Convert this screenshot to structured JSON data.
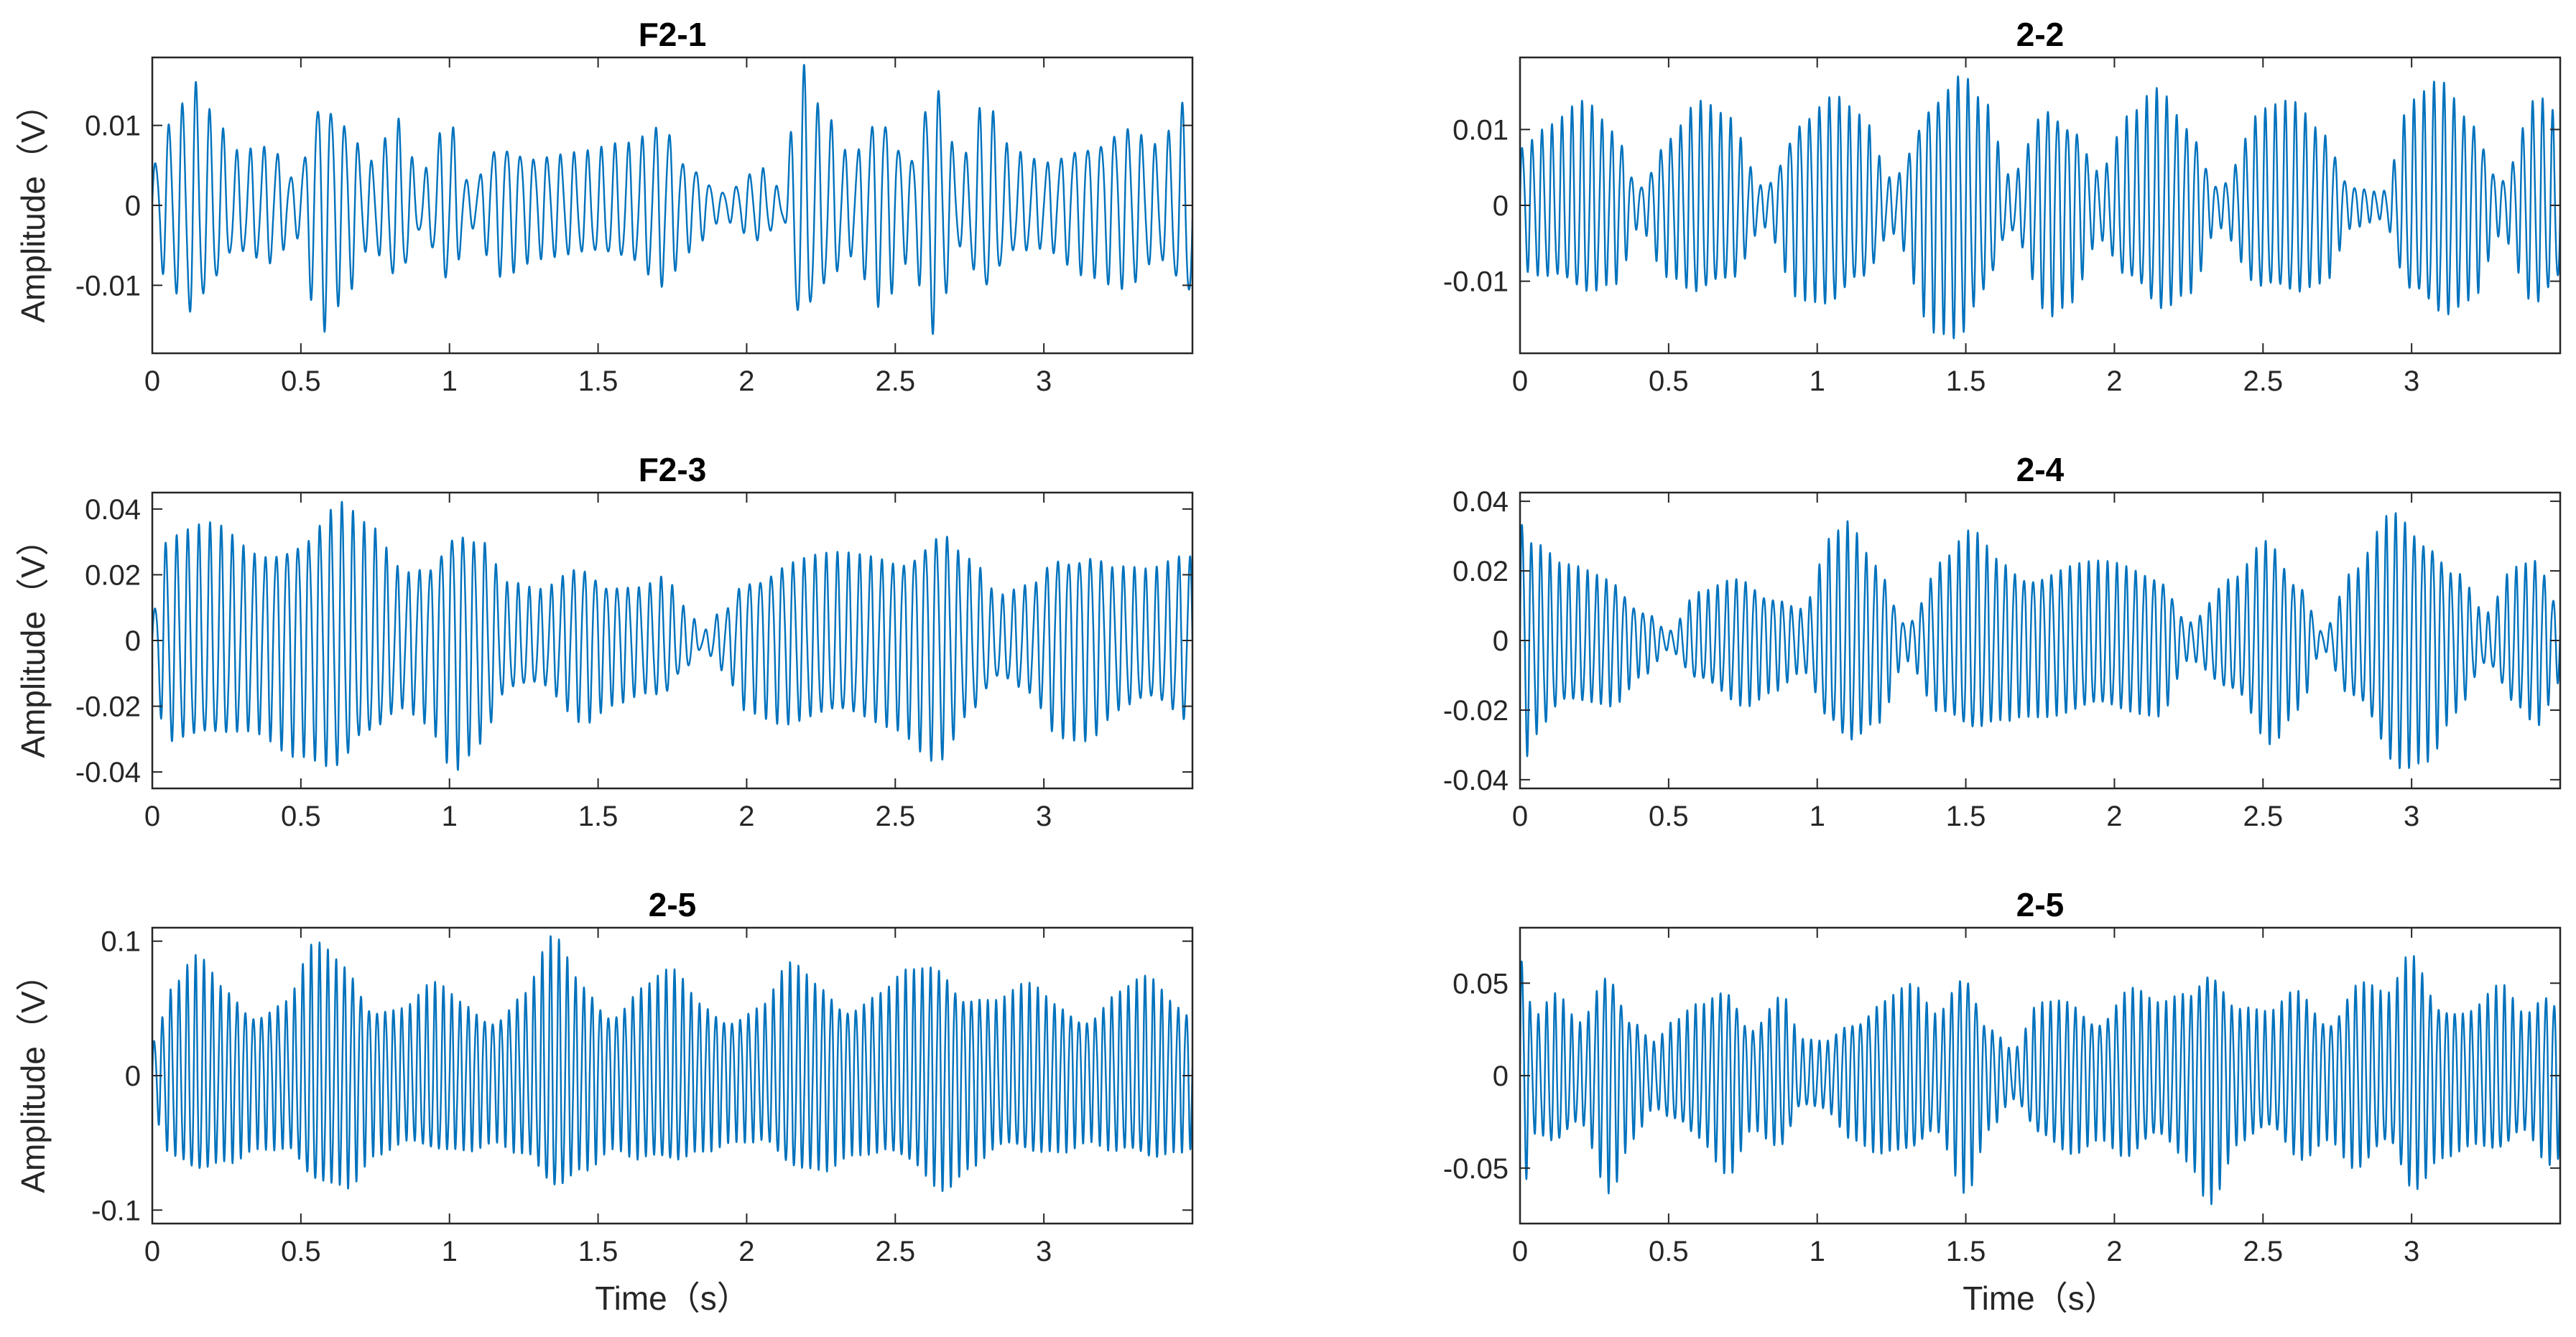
{
  "figure": {
    "line_color": "#0072BD",
    "axis_color": "#262626",
    "background": "#ffffff"
  },
  "chart_data": [
    {
      "type": "line",
      "title": "F2-1",
      "xlabel": "",
      "ylabel": "Amplitude（V）",
      "xlim": [
        0,
        3.5
      ],
      "ylim": [
        -0.0185,
        0.0185
      ],
      "xticks": [
        0,
        0.5,
        1,
        1.5,
        2,
        2.5,
        3
      ],
      "xtick_labels": [
        "0",
        "0.5",
        "1",
        "1.5",
        "2",
        "2.5",
        "3"
      ],
      "yticks": [
        -0.01,
        0,
        0.01
      ],
      "ytick_labels": [
        "-0.01",
        "0",
        "0.01"
      ],
      "carrier_hz": 22,
      "envelope": [
        [
          0,
          0.006
        ],
        [
          0.07,
          0.012
        ],
        [
          0.14,
          0.016
        ],
        [
          0.2,
          0.012
        ],
        [
          0.28,
          0.007
        ],
        [
          0.4,
          0.008
        ],
        [
          0.48,
          0.004
        ],
        [
          0.57,
          0.016
        ],
        [
          0.65,
          0.012
        ],
        [
          0.73,
          0.006
        ],
        [
          0.83,
          0.011
        ],
        [
          0.9,
          0.004
        ],
        [
          1.0,
          0.011
        ],
        [
          1.07,
          0.003
        ],
        [
          1.17,
          0.009
        ],
        [
          1.3,
          0.007
        ],
        [
          1.45,
          0.007
        ],
        [
          1.6,
          0.008
        ],
        [
          1.72,
          0.011
        ],
        [
          1.8,
          0.006
        ],
        [
          1.92,
          0.002
        ],
        [
          2.05,
          0.005
        ],
        [
          2.12,
          0.002
        ],
        [
          2.18,
          0.018
        ],
        [
          2.26,
          0.012
        ],
        [
          2.35,
          0.007
        ],
        [
          2.45,
          0.013
        ],
        [
          2.55,
          0.007
        ],
        [
          2.63,
          0.017
        ],
        [
          2.72,
          0.006
        ],
        [
          2.8,
          0.013
        ],
        [
          2.9,
          0.007
        ],
        [
          3.0,
          0.006
        ],
        [
          3.15,
          0.009
        ],
        [
          3.28,
          0.011
        ],
        [
          3.38,
          0.008
        ],
        [
          3.5,
          0.014
        ]
      ]
    },
    {
      "type": "line",
      "title": "2-2",
      "xlabel": "",
      "ylabel": "",
      "xlim": [
        0,
        3.5
      ],
      "ylim": [
        -0.0195,
        0.0195
      ],
      "xticks": [
        0,
        0.5,
        1,
        1.5,
        2,
        2.5,
        3
      ],
      "xtick_labels": [
        "0",
        "0.5",
        "1",
        "1.5",
        "2",
        "2.5",
        "3"
      ],
      "yticks": [
        -0.01,
        0,
        0.01
      ],
      "ytick_labels": [
        "-0.01",
        "0",
        "0.01"
      ],
      "carrier_hz": 30,
      "envelope": [
        [
          0,
          0.009
        ],
        [
          0.1,
          0.011
        ],
        [
          0.22,
          0.014
        ],
        [
          0.32,
          0.011
        ],
        [
          0.4,
          0.003
        ],
        [
          0.5,
          0.01
        ],
        [
          0.6,
          0.014
        ],
        [
          0.7,
          0.012
        ],
        [
          0.82,
          0.003
        ],
        [
          0.95,
          0.013
        ],
        [
          1.05,
          0.015
        ],
        [
          1.15,
          0.012
        ],
        [
          1.25,
          0.004
        ],
        [
          1.4,
          0.017
        ],
        [
          1.48,
          0.019
        ],
        [
          1.56,
          0.014
        ],
        [
          1.65,
          0.004
        ],
        [
          1.78,
          0.015
        ],
        [
          1.85,
          0.013
        ],
        [
          1.95,
          0.005
        ],
        [
          2.05,
          0.012
        ],
        [
          2.15,
          0.016
        ],
        [
          2.25,
          0.012
        ],
        [
          2.35,
          0.003
        ],
        [
          2.5,
          0.013
        ],
        [
          2.6,
          0.014
        ],
        [
          2.7,
          0.011
        ],
        [
          2.8,
          0.003
        ],
        [
          2.9,
          0.002
        ],
        [
          3.0,
          0.014
        ],
        [
          3.1,
          0.017
        ],
        [
          3.2,
          0.013
        ],
        [
          3.3,
          0.004
        ],
        [
          3.42,
          0.015
        ],
        [
          3.5,
          0.012
        ]
      ]
    },
    {
      "type": "line",
      "title": "F2-3",
      "xlabel": "",
      "ylabel": "Amplitude（V）",
      "xlim": [
        0,
        3.5
      ],
      "ylim": [
        -0.045,
        0.045
      ],
      "xticks": [
        0,
        0.5,
        1,
        1.5,
        2,
        2.5,
        3
      ],
      "xtick_labels": [
        "0",
        "0.5",
        "1",
        "1.5",
        "2",
        "2.5",
        "3"
      ],
      "yticks": [
        -0.04,
        -0.02,
        0,
        0.02,
        0.04
      ],
      "ytick_labels": [
        "-0.04",
        "-0.02",
        "0",
        "0.02",
        "0.04"
      ],
      "carrier_hz": 27,
      "envelope": [
        [
          0,
          0.01
        ],
        [
          0.05,
          0.034
        ],
        [
          0.2,
          0.036
        ],
        [
          0.35,
          0.03
        ],
        [
          0.5,
          0.036
        ],
        [
          0.63,
          0.044
        ],
        [
          0.72,
          0.036
        ],
        [
          0.85,
          0.023
        ],
        [
          0.92,
          0.026
        ],
        [
          1.02,
          0.04
        ],
        [
          1.1,
          0.034
        ],
        [
          1.2,
          0.018
        ],
        [
          1.3,
          0.016
        ],
        [
          1.45,
          0.026
        ],
        [
          1.55,
          0.02
        ],
        [
          1.65,
          0.018
        ],
        [
          1.72,
          0.02
        ],
        [
          1.8,
          0.01
        ],
        [
          1.85,
          0.003
        ],
        [
          1.92,
          0.01
        ],
        [
          2.0,
          0.022
        ],
        [
          2.15,
          0.027
        ],
        [
          2.35,
          0.027
        ],
        [
          2.5,
          0.028
        ],
        [
          2.65,
          0.038
        ],
        [
          2.75,
          0.026
        ],
        [
          2.85,
          0.014
        ],
        [
          2.95,
          0.018
        ],
        [
          3.05,
          0.03
        ],
        [
          3.15,
          0.031
        ],
        [
          3.25,
          0.024
        ],
        [
          3.35,
          0.022
        ],
        [
          3.5,
          0.028
        ]
      ]
    },
    {
      "type": "line",
      "title": "2-4",
      "xlabel": "",
      "ylabel": "",
      "xlim": [
        0,
        3.5
      ],
      "ylim": [
        -0.0425,
        0.0425
      ],
      "xticks": [
        0,
        0.5,
        1,
        1.5,
        2,
        2.5,
        3
      ],
      "xtick_labels": [
        "0",
        "0.5",
        "1",
        "1.5",
        "2",
        "2.5",
        "3"
      ],
      "yticks": [
        -0.04,
        -0.02,
        0,
        0.02,
        0.04
      ],
      "ytick_labels": [
        "-0.04",
        "-0.02",
        "0",
        "0.02",
        "0.04"
      ],
      "carrier_hz": 32,
      "envelope": [
        [
          0,
          0.04
        ],
        [
          0.05,
          0.03
        ],
        [
          0.15,
          0.022
        ],
        [
          0.3,
          0.02
        ],
        [
          0.42,
          0.01
        ],
        [
          0.5,
          0.003
        ],
        [
          0.6,
          0.014
        ],
        [
          0.75,
          0.02
        ],
        [
          0.85,
          0.015
        ],
        [
          0.95,
          0.01
        ],
        [
          1.05,
          0.03
        ],
        [
          1.1,
          0.035
        ],
        [
          1.2,
          0.025
        ],
        [
          1.3,
          0.006
        ],
        [
          1.42,
          0.024
        ],
        [
          1.52,
          0.032
        ],
        [
          1.62,
          0.025
        ],
        [
          1.7,
          0.022
        ],
        [
          1.85,
          0.023
        ],
        [
          2.0,
          0.023
        ],
        [
          2.15,
          0.022
        ],
        [
          2.25,
          0.006
        ],
        [
          2.4,
          0.018
        ],
        [
          2.52,
          0.032
        ],
        [
          2.62,
          0.02
        ],
        [
          2.7,
          0.003
        ],
        [
          2.8,
          0.02
        ],
        [
          2.95,
          0.04
        ],
        [
          3.05,
          0.035
        ],
        [
          3.15,
          0.022
        ],
        [
          3.25,
          0.008
        ],
        [
          3.35,
          0.022
        ],
        [
          3.42,
          0.026
        ],
        [
          3.5,
          0.012
        ]
      ]
    },
    {
      "type": "line",
      "title": "2-5",
      "xlabel": "Time（s）",
      "ylabel": "Amplitude（V）",
      "xlim": [
        0,
        3.5
      ],
      "ylim": [
        -0.11,
        0.11
      ],
      "xticks": [
        0,
        0.5,
        1,
        1.5,
        2,
        2.5,
        3
      ],
      "xtick_labels": [
        "0",
        "0.5",
        "1",
        "1.5",
        "2",
        "2.5",
        "3"
      ],
      "yticks": [
        -0.1,
        0,
        0.1
      ],
      "ytick_labels": [
        "-0.1",
        "0",
        "0.1"
      ],
      "carrier_hz": 36,
      "envelope": [
        [
          0,
          0.03
        ],
        [
          0.07,
          0.07
        ],
        [
          0.15,
          0.09
        ],
        [
          0.25,
          0.07
        ],
        [
          0.35,
          0.055
        ],
        [
          0.45,
          0.06
        ],
        [
          0.55,
          0.1
        ],
        [
          0.65,
          0.09
        ],
        [
          0.75,
          0.06
        ],
        [
          0.85,
          0.055
        ],
        [
          0.95,
          0.07
        ],
        [
          1.05,
          0.06
        ],
        [
          1.15,
          0.05
        ],
        [
          1.25,
          0.065
        ],
        [
          1.35,
          0.105
        ],
        [
          1.45,
          0.075
        ],
        [
          1.55,
          0.055
        ],
        [
          1.65,
          0.07
        ],
        [
          1.75,
          0.08
        ],
        [
          1.85,
          0.06
        ],
        [
          1.95,
          0.05
        ],
        [
          2.05,
          0.055
        ],
        [
          2.15,
          0.085
        ],
        [
          2.25,
          0.075
        ],
        [
          2.35,
          0.06
        ],
        [
          2.45,
          0.065
        ],
        [
          2.55,
          0.08
        ],
        [
          2.65,
          0.09
        ],
        [
          2.75,
          0.07
        ],
        [
          2.85,
          0.06
        ],
        [
          2.95,
          0.07
        ],
        [
          3.05,
          0.06
        ],
        [
          3.15,
          0.05
        ],
        [
          3.25,
          0.065
        ],
        [
          3.35,
          0.075
        ],
        [
          3.45,
          0.06
        ],
        [
          3.5,
          0.055
        ]
      ]
    },
    {
      "type": "line",
      "title": "2-5",
      "xlabel": "Time（s）",
      "ylabel": "",
      "xlim": [
        0,
        3.5
      ],
      "ylim": [
        -0.08,
        0.08
      ],
      "xticks": [
        0,
        0.5,
        1,
        1.5,
        2,
        2.5,
        3
      ],
      "xtick_labels": [
        "0",
        "0.5",
        "1",
        "1.5",
        "2",
        "2.5",
        "3"
      ],
      "yticks": [
        -0.05,
        0,
        0.05
      ],
      "ytick_labels": [
        "-0.05",
        "0",
        "0.05"
      ],
      "carrier_hz": 36,
      "envelope": [
        [
          0,
          0.075
        ],
        [
          0.05,
          0.035
        ],
        [
          0.12,
          0.045
        ],
        [
          0.2,
          0.03
        ],
        [
          0.3,
          0.065
        ],
        [
          0.38,
          0.035
        ],
        [
          0.45,
          0.02
        ],
        [
          0.52,
          0.03
        ],
        [
          0.6,
          0.04
        ],
        [
          0.7,
          0.055
        ],
        [
          0.78,
          0.03
        ],
        [
          0.88,
          0.045
        ],
        [
          0.95,
          0.02
        ],
        [
          1.02,
          0.02
        ],
        [
          1.12,
          0.035
        ],
        [
          1.22,
          0.045
        ],
        [
          1.32,
          0.05
        ],
        [
          1.4,
          0.035
        ],
        [
          1.5,
          0.065
        ],
        [
          1.58,
          0.03
        ],
        [
          1.66,
          0.015
        ],
        [
          1.75,
          0.04
        ],
        [
          1.85,
          0.045
        ],
        [
          1.95,
          0.035
        ],
        [
          2.05,
          0.05
        ],
        [
          2.15,
          0.04
        ],
        [
          2.25,
          0.05
        ],
        [
          2.32,
          0.07
        ],
        [
          2.42,
          0.04
        ],
        [
          2.52,
          0.035
        ],
        [
          2.62,
          0.05
        ],
        [
          2.72,
          0.035
        ],
        [
          2.82,
          0.055
        ],
        [
          2.92,
          0.045
        ],
        [
          3.0,
          0.07
        ],
        [
          3.1,
          0.045
        ],
        [
          3.2,
          0.04
        ],
        [
          3.3,
          0.05
        ],
        [
          3.38,
          0.035
        ],
        [
          3.46,
          0.05
        ],
        [
          3.5,
          0.045
        ]
      ]
    }
  ]
}
